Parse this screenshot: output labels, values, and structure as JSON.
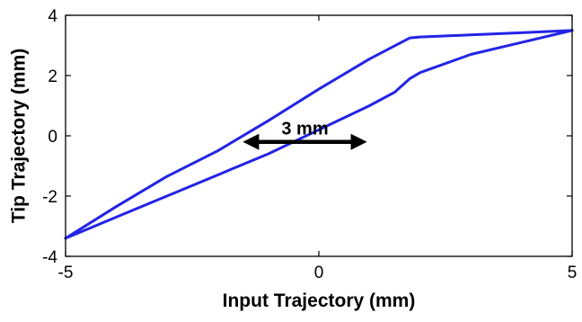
{
  "chart_data": {
    "type": "line",
    "title": "",
    "xlabel": "Input Trajectory (mm)",
    "ylabel": "Tip Trajectory (mm)",
    "xlim": [
      -5,
      5
    ],
    "ylim": [
      -4,
      4
    ],
    "xticks": [
      -5,
      0,
      5
    ],
    "yticks": [
      -4,
      -2,
      0,
      2,
      4
    ],
    "xtick_labels": [
      "-5",
      "0",
      "5"
    ],
    "ytick_labels": [
      "-4",
      "-2",
      "0",
      "2",
      "4"
    ],
    "grid": false,
    "line_color": "#2323e6",
    "series": [
      {
        "x": [
          -5.0,
          -4.0,
          -3.0,
          -2.0,
          -1.0,
          0.0,
          1.0,
          1.5,
          1.8,
          2.0,
          3.0,
          4.0,
          5.0
        ],
        "y": [
          -3.4,
          -2.7,
          -2.0,
          -1.3,
          -0.6,
          0.2,
          1.0,
          1.45,
          1.9,
          2.1,
          2.7,
          3.1,
          3.5
        ]
      },
      {
        "x": [
          5.0,
          4.0,
          3.0,
          2.0,
          1.8,
          1.0,
          0.0,
          -1.0,
          -2.0,
          -3.0,
          -4.0,
          -5.0
        ],
        "y": [
          3.5,
          3.42,
          3.35,
          3.28,
          3.25,
          2.55,
          1.55,
          0.5,
          -0.5,
          -1.35,
          -2.35,
          -3.4
        ]
      }
    ],
    "annotations": [
      {
        "text": "3 mm",
        "x_start": -1.5,
        "x_end": 0.95,
        "y": -0.2
      }
    ]
  }
}
